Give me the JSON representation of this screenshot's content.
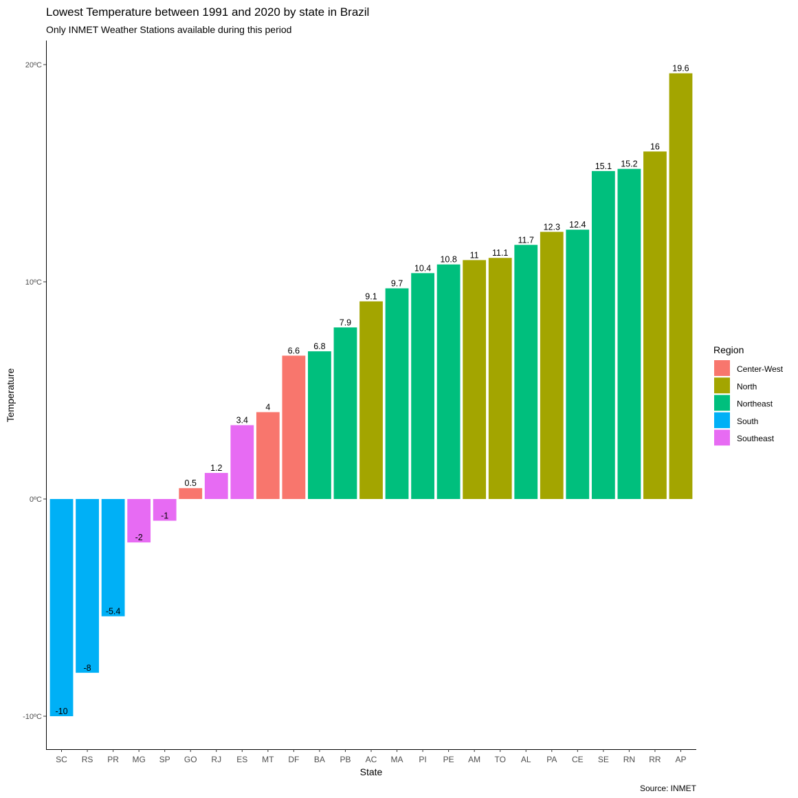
{
  "chart_data": {
    "type": "bar",
    "title": "Lowest Temperature between 1991 and 2020 by state in Brazil",
    "subtitle": "Only INMET Weather Stations available during this period",
    "xlabel": "State",
    "ylabel": "Temperature",
    "caption": "Source: INMET",
    "ylim": [
      -11.3,
      21.1
    ],
    "yticks": [
      {
        "value": -10,
        "label": "-10ºC"
      },
      {
        "value": 0,
        "label": "0ºC"
      },
      {
        "value": 10,
        "label": "10ºC"
      },
      {
        "value": 20,
        "label": "20ºC"
      }
    ],
    "grid": false,
    "legend": {
      "title": "Region",
      "position": "right",
      "entries": [
        {
          "name": "Center-West",
          "color": "#F8766D"
        },
        {
          "name": "North",
          "color": "#A3A500"
        },
        {
          "name": "Northeast",
          "color": "#00BF7D"
        },
        {
          "name": "South",
          "color": "#00B0F6"
        },
        {
          "name": "Southeast",
          "color": "#E76BF3"
        }
      ]
    },
    "bars": [
      {
        "state": "SC",
        "value": -10,
        "label": "-10",
        "region": "South"
      },
      {
        "state": "RS",
        "value": -8,
        "label": "-8",
        "region": "South"
      },
      {
        "state": "PR",
        "value": -5.4,
        "label": "-5.4",
        "region": "South"
      },
      {
        "state": "MG",
        "value": -2,
        "label": "-2",
        "region": "Southeast"
      },
      {
        "state": "SP",
        "value": -1,
        "label": "-1",
        "region": "Southeast"
      },
      {
        "state": "GO",
        "value": 0.5,
        "label": "0.5",
        "region": "Center-West"
      },
      {
        "state": "RJ",
        "value": 1.2,
        "label": "1.2",
        "region": "Southeast"
      },
      {
        "state": "ES",
        "value": 3.4,
        "label": "3.4",
        "region": "Southeast"
      },
      {
        "state": "MT",
        "value": 4,
        "label": "4",
        "region": "Center-West"
      },
      {
        "state": "DF",
        "value": 6.6,
        "label": "6.6",
        "region": "Center-West"
      },
      {
        "state": "BA",
        "value": 6.8,
        "label": "6.8",
        "region": "Northeast"
      },
      {
        "state": "PB",
        "value": 7.9,
        "label": "7.9",
        "region": "Northeast"
      },
      {
        "state": "AC",
        "value": 9.1,
        "label": "9.1",
        "region": "North"
      },
      {
        "state": "MA",
        "value": 9.7,
        "label": "9.7",
        "region": "Northeast"
      },
      {
        "state": "PI",
        "value": 10.4,
        "label": "10.4",
        "region": "Northeast"
      },
      {
        "state": "PE",
        "value": 10.8,
        "label": "10.8",
        "region": "Northeast"
      },
      {
        "state": "AM",
        "value": 11,
        "label": "11",
        "region": "North"
      },
      {
        "state": "TO",
        "value": 11.1,
        "label": "11.1",
        "region": "North"
      },
      {
        "state": "AL",
        "value": 11.7,
        "label": "11.7",
        "region": "Northeast"
      },
      {
        "state": "PA",
        "value": 12.3,
        "label": "12.3",
        "region": "North"
      },
      {
        "state": "CE",
        "value": 12.4,
        "label": "12.4",
        "region": "Northeast"
      },
      {
        "state": "SE",
        "value": 15.1,
        "label": "15.1",
        "region": "Northeast"
      },
      {
        "state": "RN",
        "value": 15.2,
        "label": "15.2",
        "region": "Northeast"
      },
      {
        "state": "RR",
        "value": 16,
        "label": "16",
        "region": "North"
      },
      {
        "state": "AP",
        "value": 19.6,
        "label": "19.6",
        "region": "North"
      }
    ]
  }
}
